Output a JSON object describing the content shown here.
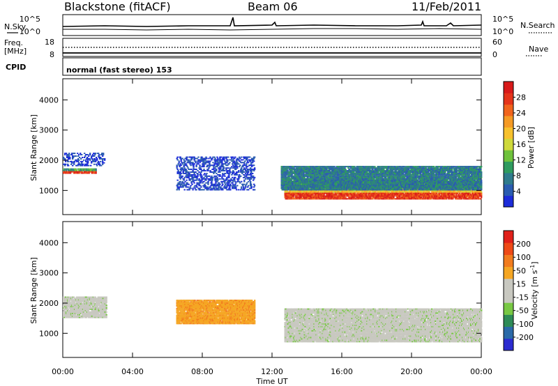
{
  "header": {
    "station": "Blackstone (fitACF)",
    "beam": "Beam 06",
    "date": "11/Feb/2011"
  },
  "nsky_panel": {
    "left_label": "N.Sky",
    "right_label": "N.Search",
    "left_ticks": [
      "10^5",
      "10^0"
    ],
    "right_ticks": [
      "10^5",
      "10^0"
    ]
  },
  "freq_panel": {
    "left_label_line1": "Freq.",
    "left_label_line2": "[MHz]",
    "right_label": "Nave",
    "left_ticks": [
      "18",
      "8"
    ],
    "right_ticks": [
      "60",
      "0"
    ]
  },
  "cpid_panel": {
    "label": "CPID",
    "text": "normal (fast stereo) 153"
  },
  "x_axis": {
    "label": "Time UT",
    "ticks": [
      "00:00",
      "04:00",
      "08:00",
      "12:00",
      "16:00",
      "20:00",
      "00:00"
    ]
  },
  "chart_data": [
    {
      "type": "heatmap",
      "name": "Power",
      "ylabel": "Slant Range [km]",
      "ylim": [
        200,
        4700
      ],
      "yticks": [
        "1000",
        "2000",
        "3000",
        "4000"
      ],
      "xlim_hours": [
        0,
        24
      ],
      "colorbar": {
        "label": "Power [dB]",
        "ticks": [
          "4",
          "8",
          "12",
          "16",
          "20",
          "24",
          "28"
        ],
        "colors": [
          "#1c2cd9",
          "#2a5cb0",
          "#2f7b8c",
          "#2f9b5f",
          "#6fc23c",
          "#cfd93b",
          "#f7c12d",
          "#f59a24",
          "#f1641c",
          "#e5341a",
          "#d81a1a"
        ]
      },
      "regions": [
        {
          "t": [
            0.0,
            1.9
          ],
          "range": [
            1550,
            1700
          ],
          "level": "high"
        },
        {
          "t": [
            0.0,
            2.4
          ],
          "range": [
            1800,
            2250
          ],
          "level": "low"
        },
        {
          "t": [
            12.7,
            24.0
          ],
          "range": [
            700,
            1300
          ],
          "level": "high"
        },
        {
          "t": [
            12.5,
            24.0
          ],
          "range": [
            1000,
            1800
          ],
          "level": "mid"
        },
        {
          "t": [
            6.5,
            11.0
          ],
          "range": [
            1000,
            2100
          ],
          "level": "low"
        }
      ]
    },
    {
      "type": "heatmap",
      "name": "Velocity",
      "ylabel": "Slant Range [km]",
      "ylim": [
        200,
        4700
      ],
      "yticks": [
        "1000",
        "2000",
        "3000",
        "4000"
      ],
      "xlim_hours": [
        0,
        24
      ],
      "colorbar": {
        "label_main": "Velocity",
        "label_unit": "m s",
        "label_exp": "-1",
        "ticks": [
          "200",
          "100",
          "50",
          "15",
          "-15",
          "-50",
          "-100",
          "-200"
        ],
        "colors": [
          "#2b2bd0",
          "#2b6aa8",
          "#2e8b57",
          "#78c844",
          "#c8c8c0",
          "#c8c8c0",
          "#f5a623",
          "#f27c1e",
          "#ee4a17",
          "#e0201a"
        ]
      },
      "regions": [
        {
          "t": [
            0.0,
            2.5
          ],
          "range": [
            1500,
            2200
          ],
          "level": "near-zero"
        },
        {
          "t": [
            6.5,
            11.0
          ],
          "range": [
            1300,
            2100
          ],
          "level": "negative"
        },
        {
          "t": [
            12.7,
            24.0
          ],
          "range": [
            700,
            1800
          ],
          "level": "near-zero"
        }
      ]
    }
  ]
}
